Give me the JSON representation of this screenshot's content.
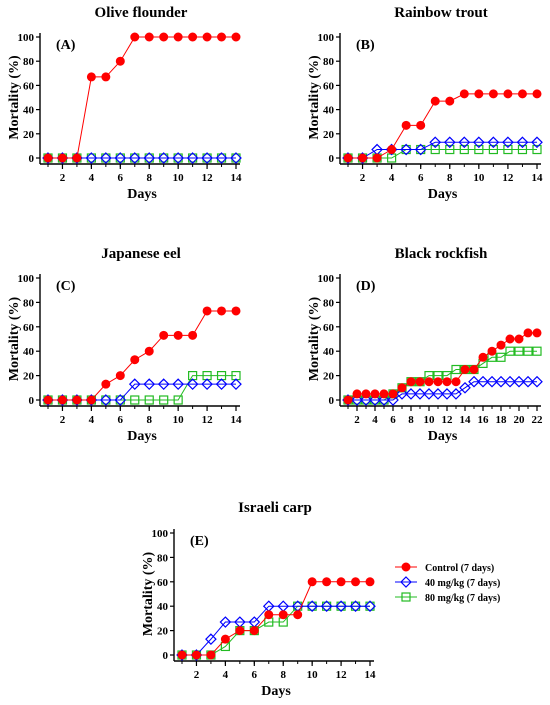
{
  "colors": {
    "control": "#ff0000",
    "dose40": "#0000ff",
    "dose80": "#22bb22",
    "axis": "#000000"
  },
  "legend": [
    {
      "series": "control",
      "label": "Control (7 days)",
      "marker": "circle"
    },
    {
      "series": "dose40",
      "label": "40 mg/kg (7 days)",
      "marker": "diamond"
    },
    {
      "series": "dose80",
      "label": "80 mg/kg (7 days)",
      "marker": "square"
    }
  ],
  "chart_data": [
    {
      "type": "line",
      "title": "Olive flounder",
      "panel_letter": "(A)",
      "xlabel": "Days",
      "ylabel": "Mortality (%)",
      "xlim": [
        1,
        14
      ],
      "ylim": [
        0,
        100
      ],
      "x_ticks": [
        2,
        4,
        6,
        8,
        10,
        12,
        14
      ],
      "y_ticks": [
        0,
        20,
        40,
        60,
        80,
        100
      ],
      "x": [
        1,
        2,
        3,
        4,
        5,
        6,
        7,
        8,
        9,
        10,
        11,
        12,
        13,
        14
      ],
      "series": [
        {
          "key": "control",
          "values": [
            0,
            0,
            0,
            67,
            67,
            80,
            100,
            100,
            100,
            100,
            100,
            100,
            100,
            100
          ]
        },
        {
          "key": "dose40",
          "values": [
            0,
            0,
            0,
            0,
            0,
            0,
            0,
            0,
            0,
            0,
            0,
            0,
            0,
            0
          ]
        },
        {
          "key": "dose80",
          "values": [
            0,
            0,
            0,
            0,
            0,
            0,
            0,
            0,
            0,
            0,
            0,
            0,
            0,
            0
          ]
        }
      ]
    },
    {
      "type": "line",
      "title": "Rainbow trout",
      "panel_letter": "(B)",
      "xlabel": "Days",
      "ylabel": "Mortality (%)",
      "xlim": [
        1,
        14
      ],
      "ylim": [
        0,
        100
      ],
      "x_ticks": [
        2,
        4,
        6,
        8,
        10,
        12,
        14
      ],
      "y_ticks": [
        0,
        20,
        40,
        60,
        80,
        100
      ],
      "x": [
        1,
        2,
        3,
        4,
        5,
        6,
        7,
        8,
        9,
        10,
        11,
        12,
        13,
        14
      ],
      "series": [
        {
          "key": "control",
          "values": [
            0,
            0,
            0,
            7,
            27,
            27,
            47,
            47,
            53,
            53,
            53,
            53,
            53,
            53
          ]
        },
        {
          "key": "dose40",
          "values": [
            0,
            0,
            7,
            7,
            7,
            7,
            13,
            13,
            13,
            13,
            13,
            13,
            13,
            13
          ]
        },
        {
          "key": "dose80",
          "values": [
            0,
            0,
            0,
            0,
            7,
            7,
            7,
            7,
            7,
            7,
            7,
            7,
            7,
            7
          ]
        }
      ]
    },
    {
      "type": "line",
      "title": "Japanese eel",
      "panel_letter": "(C)",
      "xlabel": "Days",
      "ylabel": "Mortality (%)",
      "xlim": [
        1,
        14
      ],
      "ylim": [
        0,
        100
      ],
      "x_ticks": [
        2,
        4,
        6,
        8,
        10,
        12,
        14
      ],
      "y_ticks": [
        0,
        20,
        40,
        60,
        80,
        100
      ],
      "x": [
        1,
        2,
        3,
        4,
        5,
        6,
        7,
        8,
        9,
        10,
        11,
        12,
        13,
        14
      ],
      "series": [
        {
          "key": "control",
          "values": [
            0,
            0,
            0,
            0,
            13,
            20,
            33,
            40,
            53,
            53,
            53,
            73,
            73,
            73
          ]
        },
        {
          "key": "dose40",
          "values": [
            0,
            0,
            0,
            0,
            0,
            0,
            13,
            13,
            13,
            13,
            13,
            13,
            13,
            13
          ]
        },
        {
          "key": "dose80",
          "values": [
            0,
            0,
            0,
            0,
            0,
            0,
            0,
            0,
            0,
            0,
            20,
            20,
            20,
            20
          ]
        }
      ]
    },
    {
      "type": "line",
      "title": "Black rockfish",
      "panel_letter": "(D)",
      "xlabel": "Days",
      "ylabel": "Mortality (%)",
      "xlim": [
        1,
        22
      ],
      "ylim": [
        0,
        100
      ],
      "x_ticks": [
        2,
        4,
        6,
        8,
        10,
        12,
        14,
        16,
        18,
        20,
        22
      ],
      "y_ticks": [
        0,
        20,
        40,
        60,
        80,
        100
      ],
      "x": [
        1,
        2,
        3,
        4,
        5,
        6,
        7,
        8,
        9,
        10,
        11,
        12,
        13,
        14,
        15,
        16,
        17,
        18,
        19,
        20,
        21,
        22
      ],
      "series": [
        {
          "key": "control",
          "values": [
            0,
            5,
            5,
            5,
            5,
            5,
            10,
            15,
            15,
            15,
            15,
            15,
            15,
            25,
            25,
            35,
            40,
            45,
            50,
            50,
            55,
            55
          ]
        },
        {
          "key": "dose40",
          "values": [
            0,
            0,
            0,
            0,
            0,
            0,
            5,
            5,
            5,
            5,
            5,
            5,
            5,
            10,
            15,
            15,
            15,
            15,
            15,
            15,
            15,
            15
          ]
        },
        {
          "key": "dose80",
          "values": [
            0,
            0,
            0,
            0,
            0,
            5,
            10,
            15,
            15,
            20,
            20,
            20,
            25,
            25,
            25,
            30,
            35,
            35,
            40,
            40,
            40,
            40
          ]
        }
      ]
    },
    {
      "type": "line",
      "title": "Israeli carp",
      "panel_letter": "(E)",
      "xlabel": "Days",
      "ylabel": "Mortality (%)",
      "xlim": [
        1,
        14
      ],
      "ylim": [
        0,
        100
      ],
      "x_ticks": [
        2,
        4,
        6,
        8,
        10,
        12,
        14
      ],
      "y_ticks": [
        0,
        20,
        40,
        60,
        80,
        100
      ],
      "x": [
        1,
        2,
        3,
        4,
        5,
        6,
        7,
        8,
        9,
        10,
        11,
        12,
        13,
        14
      ],
      "series": [
        {
          "key": "control",
          "values": [
            0,
            0,
            0,
            13,
            20,
            20,
            33,
            33,
            33,
            60,
            60,
            60,
            60,
            60
          ]
        },
        {
          "key": "dose40",
          "values": [
            0,
            0,
            13,
            27,
            27,
            27,
            40,
            40,
            40,
            40,
            40,
            40,
            40,
            40
          ]
        },
        {
          "key": "dose80",
          "values": [
            0,
            0,
            0,
            7,
            20,
            20,
            27,
            27,
            40,
            40,
            40,
            40,
            40,
            40
          ]
        }
      ]
    }
  ]
}
